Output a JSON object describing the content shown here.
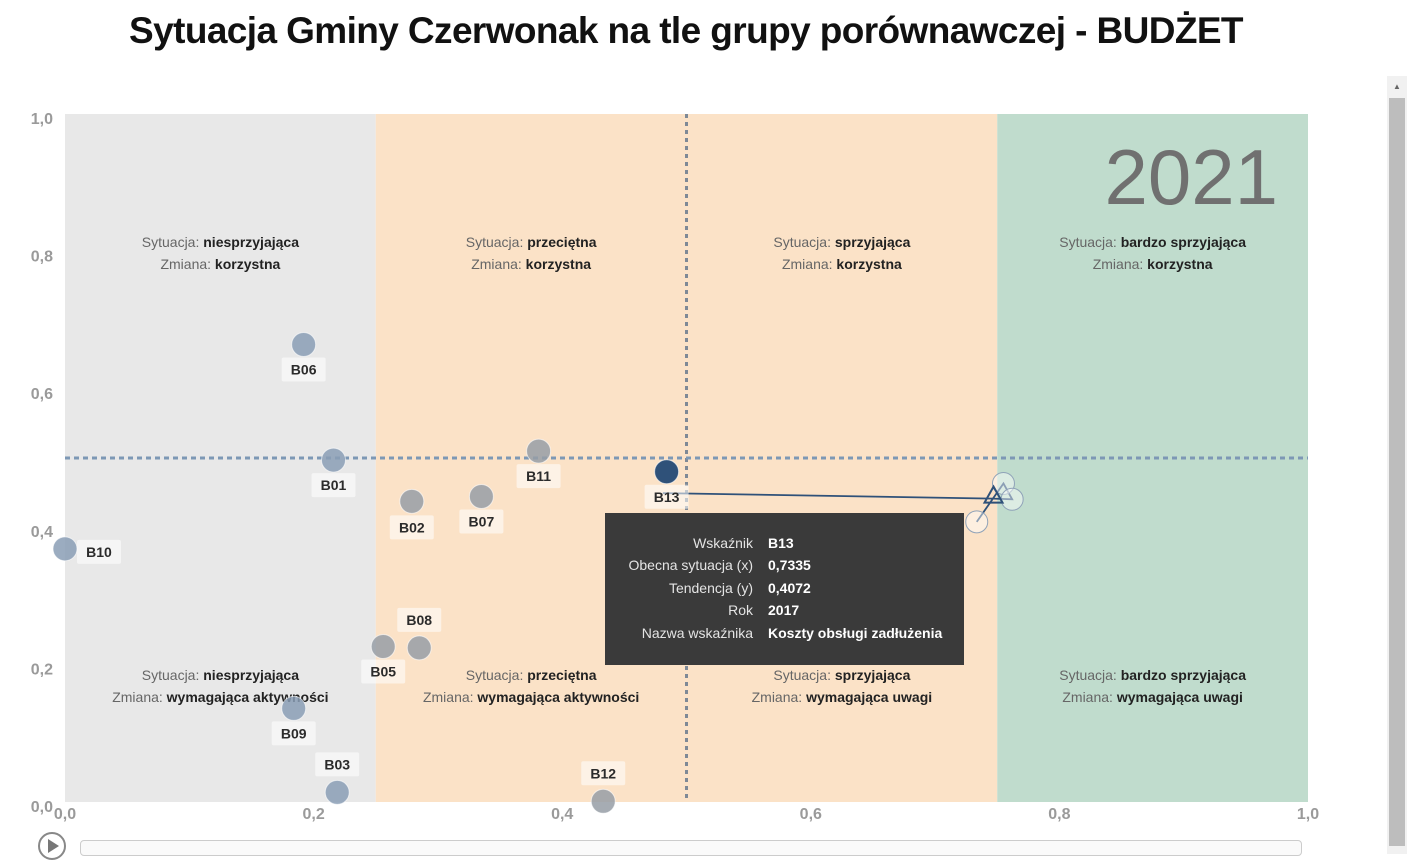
{
  "title": "Sytuacja Gminy Czerwonak na tle grupy porównawczej - BUDŻET",
  "year_label": "2021",
  "colors": {
    "band_1": "#e8e8e8",
    "band_2": "#fbe2c7",
    "band_3": "#fbe2c7",
    "band_4": "#c0dccd",
    "point": "#8a9db5",
    "point_gray": "#979ea6",
    "selected": "#2f5179",
    "ref_h": "#7d98b5",
    "ref_v": "#7e8996",
    "trail": "#2f5179"
  },
  "regions": [
    {
      "situation": "niesprzyjająca",
      "change": "korzystna"
    },
    {
      "situation": "przeciętna",
      "change": "korzystna"
    },
    {
      "situation": "sprzyjająca",
      "change": "korzystna"
    },
    {
      "situation": "bardzo sprzyjająca",
      "change": "korzystna"
    },
    {
      "situation": "niesprzyjająca",
      "change": "wymagająca aktywności"
    },
    {
      "situation": "przeciętna",
      "change": "wymagająca aktywności"
    },
    {
      "situation": "sprzyjająca",
      "change": "wymagająca uwagi"
    },
    {
      "situation": "bardzo sprzyjająca",
      "change": "wymagająca uwagi"
    }
  ],
  "region_labels": {
    "situation": "Sytuacja:",
    "change": "Zmiana:"
  },
  "chart_data": {
    "type": "scatter",
    "xlim": [
      0,
      1
    ],
    "ylim": [
      0,
      1
    ],
    "x_ticks": [
      "0,0",
      "0,2",
      "0,4",
      "0,6",
      "0,8",
      "1,0"
    ],
    "y_ticks": [
      "0,0",
      "0,2",
      "0,4",
      "0,6",
      "0,8",
      "1,0"
    ],
    "bands_x": [
      0,
      0.25,
      0.5,
      0.75,
      1.0
    ],
    "ref_x": 0.5,
    "ref_y": 0.5,
    "points": [
      {
        "label": "B06",
        "x": 0.192,
        "y": 0.665
      },
      {
        "label": "B01",
        "x": 0.216,
        "y": 0.497
      },
      {
        "label": "B11",
        "x": 0.381,
        "y": 0.51
      },
      {
        "label": "B10",
        "x": 0.0,
        "y": 0.368
      },
      {
        "label": "B02",
        "x": 0.279,
        "y": 0.437
      },
      {
        "label": "B07",
        "x": 0.335,
        "y": 0.444
      },
      {
        "label": "B08",
        "x": 0.285,
        "y": 0.224
      },
      {
        "label": "B05",
        "x": 0.256,
        "y": 0.226
      },
      {
        "label": "B09",
        "x": 0.184,
        "y": 0.136
      },
      {
        "label": "B03",
        "x": 0.219,
        "y": 0.014
      },
      {
        "label": "B12",
        "x": 0.433,
        "y": 0.001
      },
      {
        "label": "B13",
        "x": 0.484,
        "y": 0.48
      }
    ],
    "selected": "B13",
    "trail": [
      {
        "x": 0.7335,
        "y": 0.4072
      },
      {
        "x": 0.755,
        "y": 0.463
      },
      {
        "x": 0.762,
        "y": 0.44
      },
      {
        "x": 0.747,
        "y": 0.441
      },
      {
        "x": 0.481,
        "y": 0.449
      }
    ]
  },
  "tooltip": {
    "rows": [
      {
        "key": "Wskaźnik",
        "value": "B13"
      },
      {
        "key": "Obecna sytuacja (x)",
        "value": "0,7335"
      },
      {
        "key": "Tendencja (y)",
        "value": "0,4072"
      },
      {
        "key": "Rok",
        "value": "2017"
      },
      {
        "key": "Nazwa wskaźnika",
        "value": "Koszty obsługi zadłużenia"
      }
    ]
  }
}
